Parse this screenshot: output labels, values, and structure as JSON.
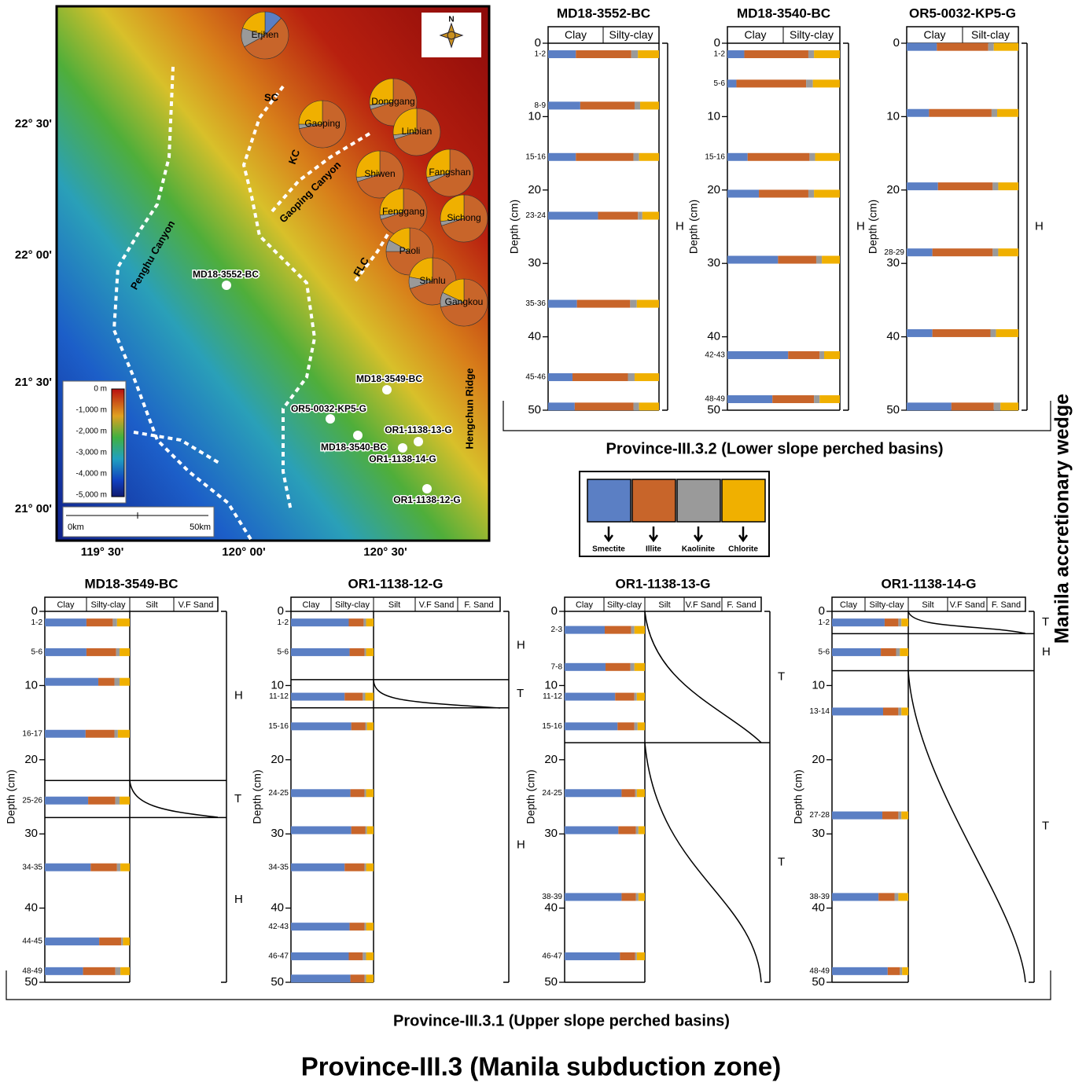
{
  "title": "Province-III.3 (Manila subduction zone)",
  "side_label": "Manila accretionary wedge",
  "group_labels": {
    "lower": "Province-III.3.2 (Lower slope perched basins)",
    "upper": "Province-III.3.1 (Upper slope perched basins)"
  },
  "legend": {
    "items": [
      {
        "name": "Smectite",
        "color": "#5b7fc4"
      },
      {
        "name": "Illite",
        "color": "#c8652a"
      },
      {
        "name": "Kaolinite",
        "color": "#9a9a9a"
      },
      {
        "name": "Chlorite",
        "color": "#f0b000"
      }
    ]
  },
  "map": {
    "lat_labels": [
      "22° 30'",
      "22° 00'",
      "21° 30'",
      "21° 00'"
    ],
    "lon_labels": [
      "119° 30'",
      "120° 00'",
      "120° 30'"
    ],
    "north": "N",
    "features": [
      "SC",
      "KC",
      "Gaoping Canyon",
      "Penghu Canyon",
      "FLC",
      "Hengchun Ridge"
    ],
    "stations": [
      "MD18-3552-BC",
      "MD18-3549-BC",
      "OR5-0032-KP5-G",
      "OR1-1138-13-G",
      "MD18-3540-BC",
      "OR1-1138-14-G",
      "OR1-1138-12-G"
    ],
    "colorbar": [
      "0 m",
      "-1,000 m",
      "-2,000 m",
      "-3,000 m",
      "-4,000 m",
      "-5,000 m"
    ],
    "scale": [
      "0km",
      "50km"
    ],
    "pies": [
      {
        "name": "Erjhen",
        "values": [
          12,
          55,
          13,
          20
        ]
      },
      {
        "name": "Donggang",
        "values": [
          0,
          70,
          3,
          27
        ]
      },
      {
        "name": "Gaoping",
        "values": [
          0,
          72,
          3,
          25
        ]
      },
      {
        "name": "Linbian",
        "values": [
          0,
          70,
          3,
          27
        ]
      },
      {
        "name": "Shiwen",
        "values": [
          0,
          70,
          3,
          27
        ]
      },
      {
        "name": "Fangshan",
        "values": [
          0,
          68,
          4,
          28
        ]
      },
      {
        "name": "Fenggang",
        "values": [
          0,
          70,
          3,
          27
        ]
      },
      {
        "name": "Sichong",
        "values": [
          0,
          70,
          3,
          27
        ]
      },
      {
        "name": "Paoli",
        "values": [
          0,
          75,
          8,
          17
        ]
      },
      {
        "name": "Shinlu",
        "values": [
          0,
          70,
          8,
          22
        ]
      },
      {
        "name": "Gangkou",
        "values": [
          0,
          72,
          10,
          18
        ]
      }
    ]
  },
  "chart_data": [
    {
      "type": "bar",
      "title": "MD18-3552-BC",
      "columns": [
        "Clay",
        "Silty-clay"
      ],
      "ylabel": "Depth (cm)",
      "ylim": [
        0,
        50
      ],
      "yticks": [
        0,
        10,
        20,
        30,
        40,
        50
      ],
      "categories": [
        "1-2",
        "8-9",
        "15-16",
        "23-24",
        "35-36",
        "45-46",
        null
      ],
      "depths": [
        1.5,
        8.5,
        15.5,
        23.5,
        35.5,
        45.5,
        49.5
      ],
      "values": [
        [
          25,
          50,
          6,
          19
        ],
        [
          29,
          49,
          5,
          17
        ],
        [
          25,
          52,
          5,
          18
        ],
        [
          45,
          36,
          4,
          15
        ],
        [
          26,
          48,
          6,
          20
        ],
        [
          22,
          50,
          6,
          22
        ],
        [
          24,
          53,
          5,
          18
        ]
      ],
      "units": [
        "H"
      ],
      "boundaries": []
    },
    {
      "type": "bar",
      "title": "MD18-3540-BC",
      "columns": [
        "Clay",
        "Silty-clay"
      ],
      "ylabel": "Depth (cm)",
      "ylim": [
        0,
        50
      ],
      "yticks": [
        0,
        10,
        20,
        30,
        40,
        50
      ],
      "categories": [
        "1-2",
        "5-6",
        "15-16",
        null,
        null,
        "42-43",
        "48-49"
      ],
      "depths": [
        1.5,
        5.5,
        15.5,
        20.5,
        29.5,
        42.5,
        48.5
      ],
      "values": [
        [
          15,
          57,
          5,
          23
        ],
        [
          8,
          62,
          6,
          24
        ],
        [
          18,
          55,
          5,
          22
        ],
        [
          28,
          44,
          5,
          23
        ],
        [
          45,
          34,
          5,
          16
        ],
        [
          54,
          28,
          4,
          14
        ],
        [
          40,
          37,
          5,
          18
        ]
      ],
      "units": [
        "H"
      ],
      "boundaries": []
    },
    {
      "type": "bar",
      "title": "OR5-0032-KP5-G",
      "columns": [
        "Clay",
        "Silt-clay"
      ],
      "ylabel": "Depth (cm)",
      "ylim": [
        0,
        50
      ],
      "yticks": [
        0,
        10,
        20,
        30,
        40,
        50
      ],
      "categories": [
        null,
        null,
        null,
        "28-29",
        null,
        null
      ],
      "depths": [
        0.5,
        9.5,
        19.5,
        28.5,
        39.5,
        49.5
      ],
      "values": [
        [
          27,
          46,
          5,
          22
        ],
        [
          20,
          56,
          5,
          19
        ],
        [
          28,
          49,
          5,
          18
        ],
        [
          23,
          54,
          5,
          18
        ],
        [
          23,
          52,
          5,
          20
        ],
        [
          40,
          38,
          6,
          16
        ]
      ],
      "units": [
        "H"
      ],
      "boundaries": []
    },
    {
      "type": "bar",
      "title": "MD18-3549-BC",
      "columns": [
        "Clay",
        "Silty-clay",
        "Silt",
        "V.F Sand"
      ],
      "ylabel": "Depth (cm)",
      "ylim": [
        0,
        50
      ],
      "yticks": [
        0,
        10,
        20,
        30,
        40,
        50
      ],
      "categories": [
        "1-2",
        "5-6",
        null,
        "16-17",
        "25-26",
        "34-35",
        "44-45",
        "48-49"
      ],
      "depths": [
        1.5,
        5.5,
        9.5,
        16.5,
        25.5,
        34.5,
        44.5,
        48.5
      ],
      "values": [
        [
          49,
          31,
          5,
          15
        ],
        [
          49,
          35,
          4,
          12
        ],
        [
          63,
          19,
          6,
          12
        ],
        [
          48,
          34,
          4,
          14
        ],
        [
          51,
          32,
          5,
          12
        ],
        [
          54,
          31,
          4,
          11
        ],
        [
          64,
          26,
          2,
          8
        ],
        [
          45,
          38,
          6,
          11
        ]
      ],
      "units": [
        "H",
        "T",
        "H"
      ],
      "boundaries": [
        22.8,
        27.8
      ]
    },
    {
      "type": "bar",
      "title": "OR1-1138-12-G",
      "columns": [
        "Clay",
        "Silty-clay",
        "Silt",
        "V.F Sand",
        "F. Sand"
      ],
      "ylabel": "Depth (cm)",
      "ylim": [
        0,
        50
      ],
      "yticks": [
        0,
        10,
        20,
        30,
        40,
        50
      ],
      "categories": [
        "1-2",
        "5-6",
        "11-12",
        "15-16",
        "24-25",
        null,
        "34-35",
        "42-43",
        "46-47",
        null
      ],
      "depths": [
        1.5,
        5.5,
        11.5,
        15.5,
        24.5,
        29.5,
        34.5,
        42.5,
        46.5,
        49.5
      ],
      "values": [
        [
          70,
          18,
          3,
          9
        ],
        [
          71,
          18,
          2,
          9
        ],
        [
          65,
          22,
          3,
          10
        ],
        [
          73,
          17,
          2,
          8
        ],
        [
          72,
          17,
          2,
          9
        ],
        [
          73,
          17,
          2,
          8
        ],
        [
          65,
          24,
          2,
          9
        ],
        [
          71,
          18,
          2,
          9
        ],
        [
          70,
          17,
          4,
          9
        ],
        [
          72,
          17,
          2,
          9
        ]
      ],
      "units": [
        "H",
        "T",
        "H"
      ],
      "boundaries": [
        9.2,
        13
      ]
    },
    {
      "type": "bar",
      "title": "OR1-1138-13-G",
      "columns": [
        "Clay",
        "Silty-clay",
        "Silt",
        "V.F Sand",
        "F. Sand"
      ],
      "ylabel": "Depth (cm)",
      "ylim": [
        0,
        50
      ],
      "yticks": [
        0,
        10,
        20,
        30,
        40,
        50
      ],
      "categories": [
        "2-3",
        "7-8",
        "11-12",
        "15-16",
        "24-25",
        null,
        "38-39",
        "46-47"
      ],
      "depths": [
        2.5,
        7.5,
        11.5,
        15.5,
        24.5,
        29.5,
        38.5,
        46.5
      ],
      "values": [
        [
          50,
          33,
          4,
          13
        ],
        [
          51,
          31,
          5,
          13
        ],
        [
          63,
          24,
          3,
          10
        ],
        [
          66,
          21,
          4,
          9
        ],
        [
          71,
          17,
          2,
          10
        ],
        [
          67,
          22,
          3,
          8
        ],
        [
          71,
          18,
          3,
          8
        ],
        [
          69,
          19,
          2,
          10
        ]
      ],
      "units": [
        "T",
        "T"
      ],
      "boundaries": [
        17.7
      ]
    },
    {
      "type": "bar",
      "title": "OR1-1138-14-G",
      "columns": [
        "Clay",
        "Silty-clay",
        "Silt",
        "V.F Sand",
        "F. Sand"
      ],
      "ylabel": "Depth (cm)",
      "ylim": [
        0,
        50
      ],
      "yticks": [
        0,
        10,
        20,
        30,
        40,
        50
      ],
      "categories": [
        "1-2",
        "5-6",
        "13-14",
        "27-28",
        "38-39",
        "48-49"
      ],
      "depths": [
        1.5,
        5.5,
        13.5,
        27.5,
        38.5,
        48.5
      ],
      "values": [
        [
          69,
          18,
          4,
          9
        ],
        [
          64,
          20,
          5,
          11
        ],
        [
          67,
          20,
          4,
          9
        ],
        [
          66,
          21,
          4,
          9
        ],
        [
          61,
          21,
          5,
          13
        ],
        [
          73,
          16,
          3,
          8
        ]
      ],
      "units": [
        "T",
        "H",
        "T"
      ],
      "boundaries": [
        3,
        8
      ]
    }
  ]
}
